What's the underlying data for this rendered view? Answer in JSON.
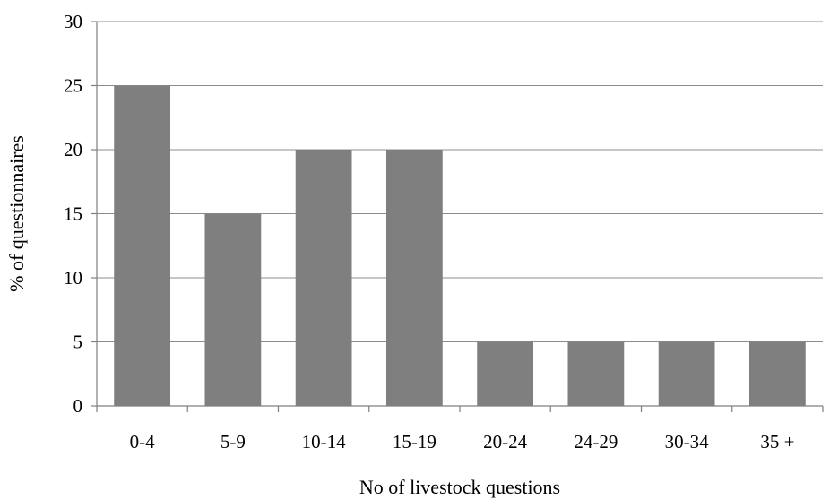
{
  "chart_data": {
    "type": "bar",
    "categories": [
      "0-4",
      "5-9",
      "10-14",
      "15-19",
      "20-24",
      "24-29",
      "30-34",
      "35 +"
    ],
    "values": [
      25,
      15,
      20,
      20,
      5,
      5,
      5,
      5
    ],
    "title": "",
    "xlabel": "No of livestock questions",
    "ylabel": "% of questionnaires",
    "ylim": [
      0,
      30
    ],
    "yticks": [
      0,
      5,
      10,
      15,
      20,
      25,
      30
    ],
    "grid": true,
    "legend": "none",
    "bar_color": "#7f7f7f"
  }
}
